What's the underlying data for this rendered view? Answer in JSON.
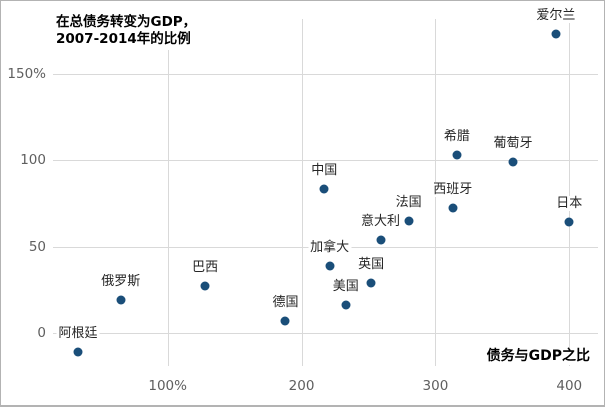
{
  "chart_data": {
    "type": "scatter",
    "title_lines": [
      "在总债务转变为GDP，",
      "2007-2014年的比例"
    ],
    "xlabel": "债务与GDP之比",
    "ylabel": "",
    "xlim": [
      0,
      428
    ],
    "ylim": [
      -27,
      182
    ],
    "grid": true,
    "x_ticks": [
      {
        "value": 100,
        "label": "100%"
      },
      {
        "value": 200,
        "label": "200"
      },
      {
        "value": 300,
        "label": "300"
      },
      {
        "value": 400,
        "label": "400"
      }
    ],
    "y_ticks": [
      {
        "value": 0,
        "label": "0"
      },
      {
        "value": 50,
        "label": "50"
      },
      {
        "value": 100,
        "label": "100"
      },
      {
        "value": 150,
        "label": "150%"
      }
    ],
    "points": [
      {
        "label": "阿根廷",
        "x": 33,
        "y": -11
      },
      {
        "label": "俄罗斯",
        "x": 65,
        "y": 19
      },
      {
        "label": "巴西",
        "x": 128,
        "y": 27
      },
      {
        "label": "德国",
        "x": 188,
        "y": 7
      },
      {
        "label": "中国",
        "x": 217,
        "y": 83
      },
      {
        "label": "加拿大",
        "x": 221,
        "y": 39
      },
      {
        "label": "美国",
        "x": 233,
        "y": 16
      },
      {
        "label": "英国",
        "x": 252,
        "y": 29
      },
      {
        "label": "意大利",
        "x": 259,
        "y": 54
      },
      {
        "label": "法国",
        "x": 280,
        "y": 65
      },
      {
        "label": "西班牙",
        "x": 313,
        "y": 72
      },
      {
        "label": "希腊",
        "x": 316,
        "y": 103
      },
      {
        "label": "葡萄牙",
        "x": 358,
        "y": 99
      },
      {
        "label": "爱尔兰",
        "x": 390,
        "y": 173
      },
      {
        "label": "日本",
        "x": 400,
        "y": 64
      }
    ],
    "colors": {
      "dot": "#1a4e79",
      "gridline": "#d9d9d9",
      "tick_text": "#5f5f5f",
      "point_label_text": "#262626",
      "title_text": "#000000",
      "border": "#b3b3b3"
    }
  }
}
